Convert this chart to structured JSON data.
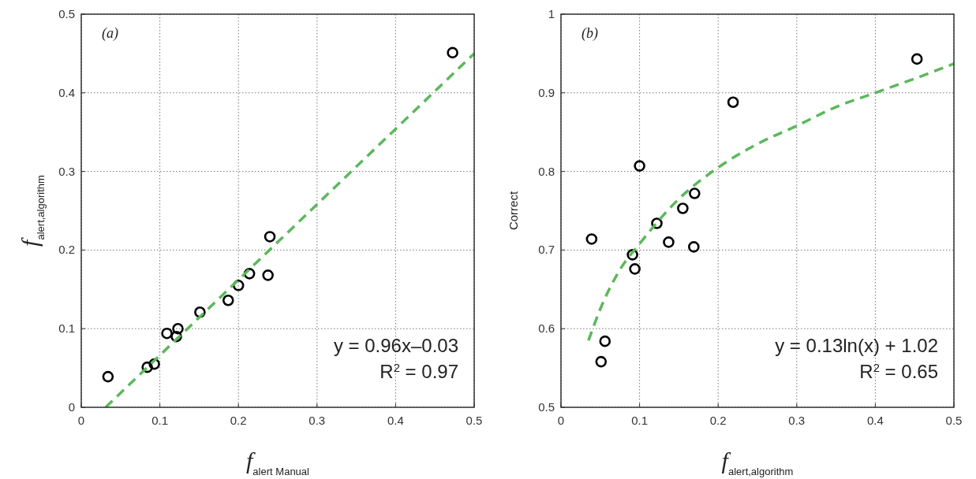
{
  "chart_data": [
    {
      "type": "scatter",
      "xlabel": "f$_{alert Manual}$",
      "ylabel": "f$_{alert,algorithm}$",
      "annotations": [
        "(a)",
        "y = 0.96x–0.03",
        "R$^{2}$ = 0.97"
      ],
      "xlim": [
        0,
        0.5
      ],
      "ylim": [
        0,
        0.5
      ],
      "xticks": [
        0,
        0.1,
        0.2,
        0.3,
        0.4,
        0.5
      ],
      "yticks": [
        0,
        0.1,
        0.2,
        0.3,
        0.4,
        0.5
      ],
      "grid": true,
      "series": [
        {
          "marker": "circle",
          "color": "#000000",
          "x": [
            0.4725,
            0.24,
            0.2376,
            0.214,
            0.2,
            0.187,
            0.151,
            0.123,
            0.121,
            0.109,
            0.093,
            0.084,
            0.034
          ],
          "values": [
            0.451,
            0.217,
            0.168,
            0.17,
            0.155,
            0.136,
            0.121,
            0.1,
            0.09,
            0.094,
            0.055,
            0.051,
            0.039
          ]
        },
        {
          "type": "line",
          "color": "#5cb85c",
          "line_style": "dashed",
          "x": [
            0.031,
            0.5
          ],
          "values": [
            0,
            0.45
          ]
        }
      ]
    },
    {
      "type": "scatter",
      "xlabel": "f$_{alert,algorithm}$",
      "ylabel": "Correct",
      "annotations": [
        "(b)",
        "y = 0.13ln(x) + 1.02",
        "R$^{2}$ = 0.65"
      ],
      "xlim": [
        0,
        0.5
      ],
      "ylim": [
        0.5,
        1
      ],
      "xticks": [
        0,
        0.1,
        0.2,
        0.3,
        0.4,
        0.5
      ],
      "yticks": [
        0.5,
        0.6,
        0.7,
        0.8,
        0.9,
        1
      ],
      "grid": true,
      "series": [
        {
          "marker": "circle",
          "color": "#000000",
          "x": [
            0.453,
            0.219,
            0.1,
            0.039,
            0.17,
            0.155,
            0.122,
            0.137,
            0.169,
            0.091,
            0.094,
            0.056,
            0.051
          ],
          "values": [
            0.943,
            0.888,
            0.807,
            0.714,
            0.772,
            0.753,
            0.734,
            0.71,
            0.704,
            0.694,
            0.676,
            0.584,
            0.558
          ]
        },
        {
          "type": "line",
          "color": "#5cb85c",
          "line_style": "dashed",
          "x": [
            0.035,
            0.05,
            0.075,
            0.1,
            0.15,
            0.2,
            0.25,
            0.3,
            0.35,
            0.4,
            0.45,
            0.5
          ],
          "values": [
            0.585,
            0.625,
            0.675,
            0.708,
            0.765,
            0.805,
            0.835,
            0.858,
            0.882,
            0.9,
            0.918,
            0.937
          ]
        }
      ]
    }
  ]
}
